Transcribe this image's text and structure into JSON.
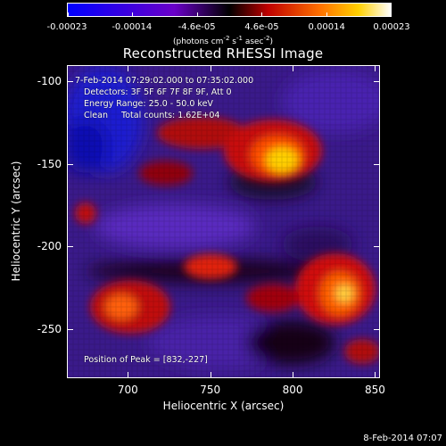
{
  "colorbar": {
    "tick_labels": [
      "-0.00023",
      "-0.00014",
      "-4.6e-05",
      "4.6e-05",
      "0.00014",
      "0.00023"
    ],
    "units_prefix": "(photons cm",
    "units_exp1": "-2",
    "units_mid": " s",
    "units_exp2": "-1",
    "units_mid2": " asec",
    "units_exp3": "-2",
    "units_suffix": ")",
    "colors": [
      "#0000ff",
      "#7700cc",
      "#000000",
      "#ff0000",
      "#ff8800",
      "#ffffff"
    ]
  },
  "title": "Reconstructed RHESSI Image",
  "annotations": {
    "time_range": "7-Feb-2014 07:29:02.000 to 07:35:02.000",
    "detectors": "Detectors: 3F 5F 6F 7F 8F 9F, Att 0",
    "energy_range": "Energy Range: 25.0 - 50.0 keV",
    "clean": "Clean     Total counts: 1.62E+04",
    "peak": "Position of Peak = [832,-227]"
  },
  "axes": {
    "xlabel": "Heliocentric X (arcsec)",
    "ylabel": "Heliocentric Y (arcsec)",
    "x_ticks": [
      "700",
      "750",
      "800",
      "850"
    ],
    "y_ticks": [
      "-100",
      "-150",
      "-200",
      "-250"
    ],
    "xlim": [
      663,
      853
    ],
    "ylim": [
      -280,
      -90
    ]
  },
  "datestamp": "8-Feb-2014 07:07"
}
